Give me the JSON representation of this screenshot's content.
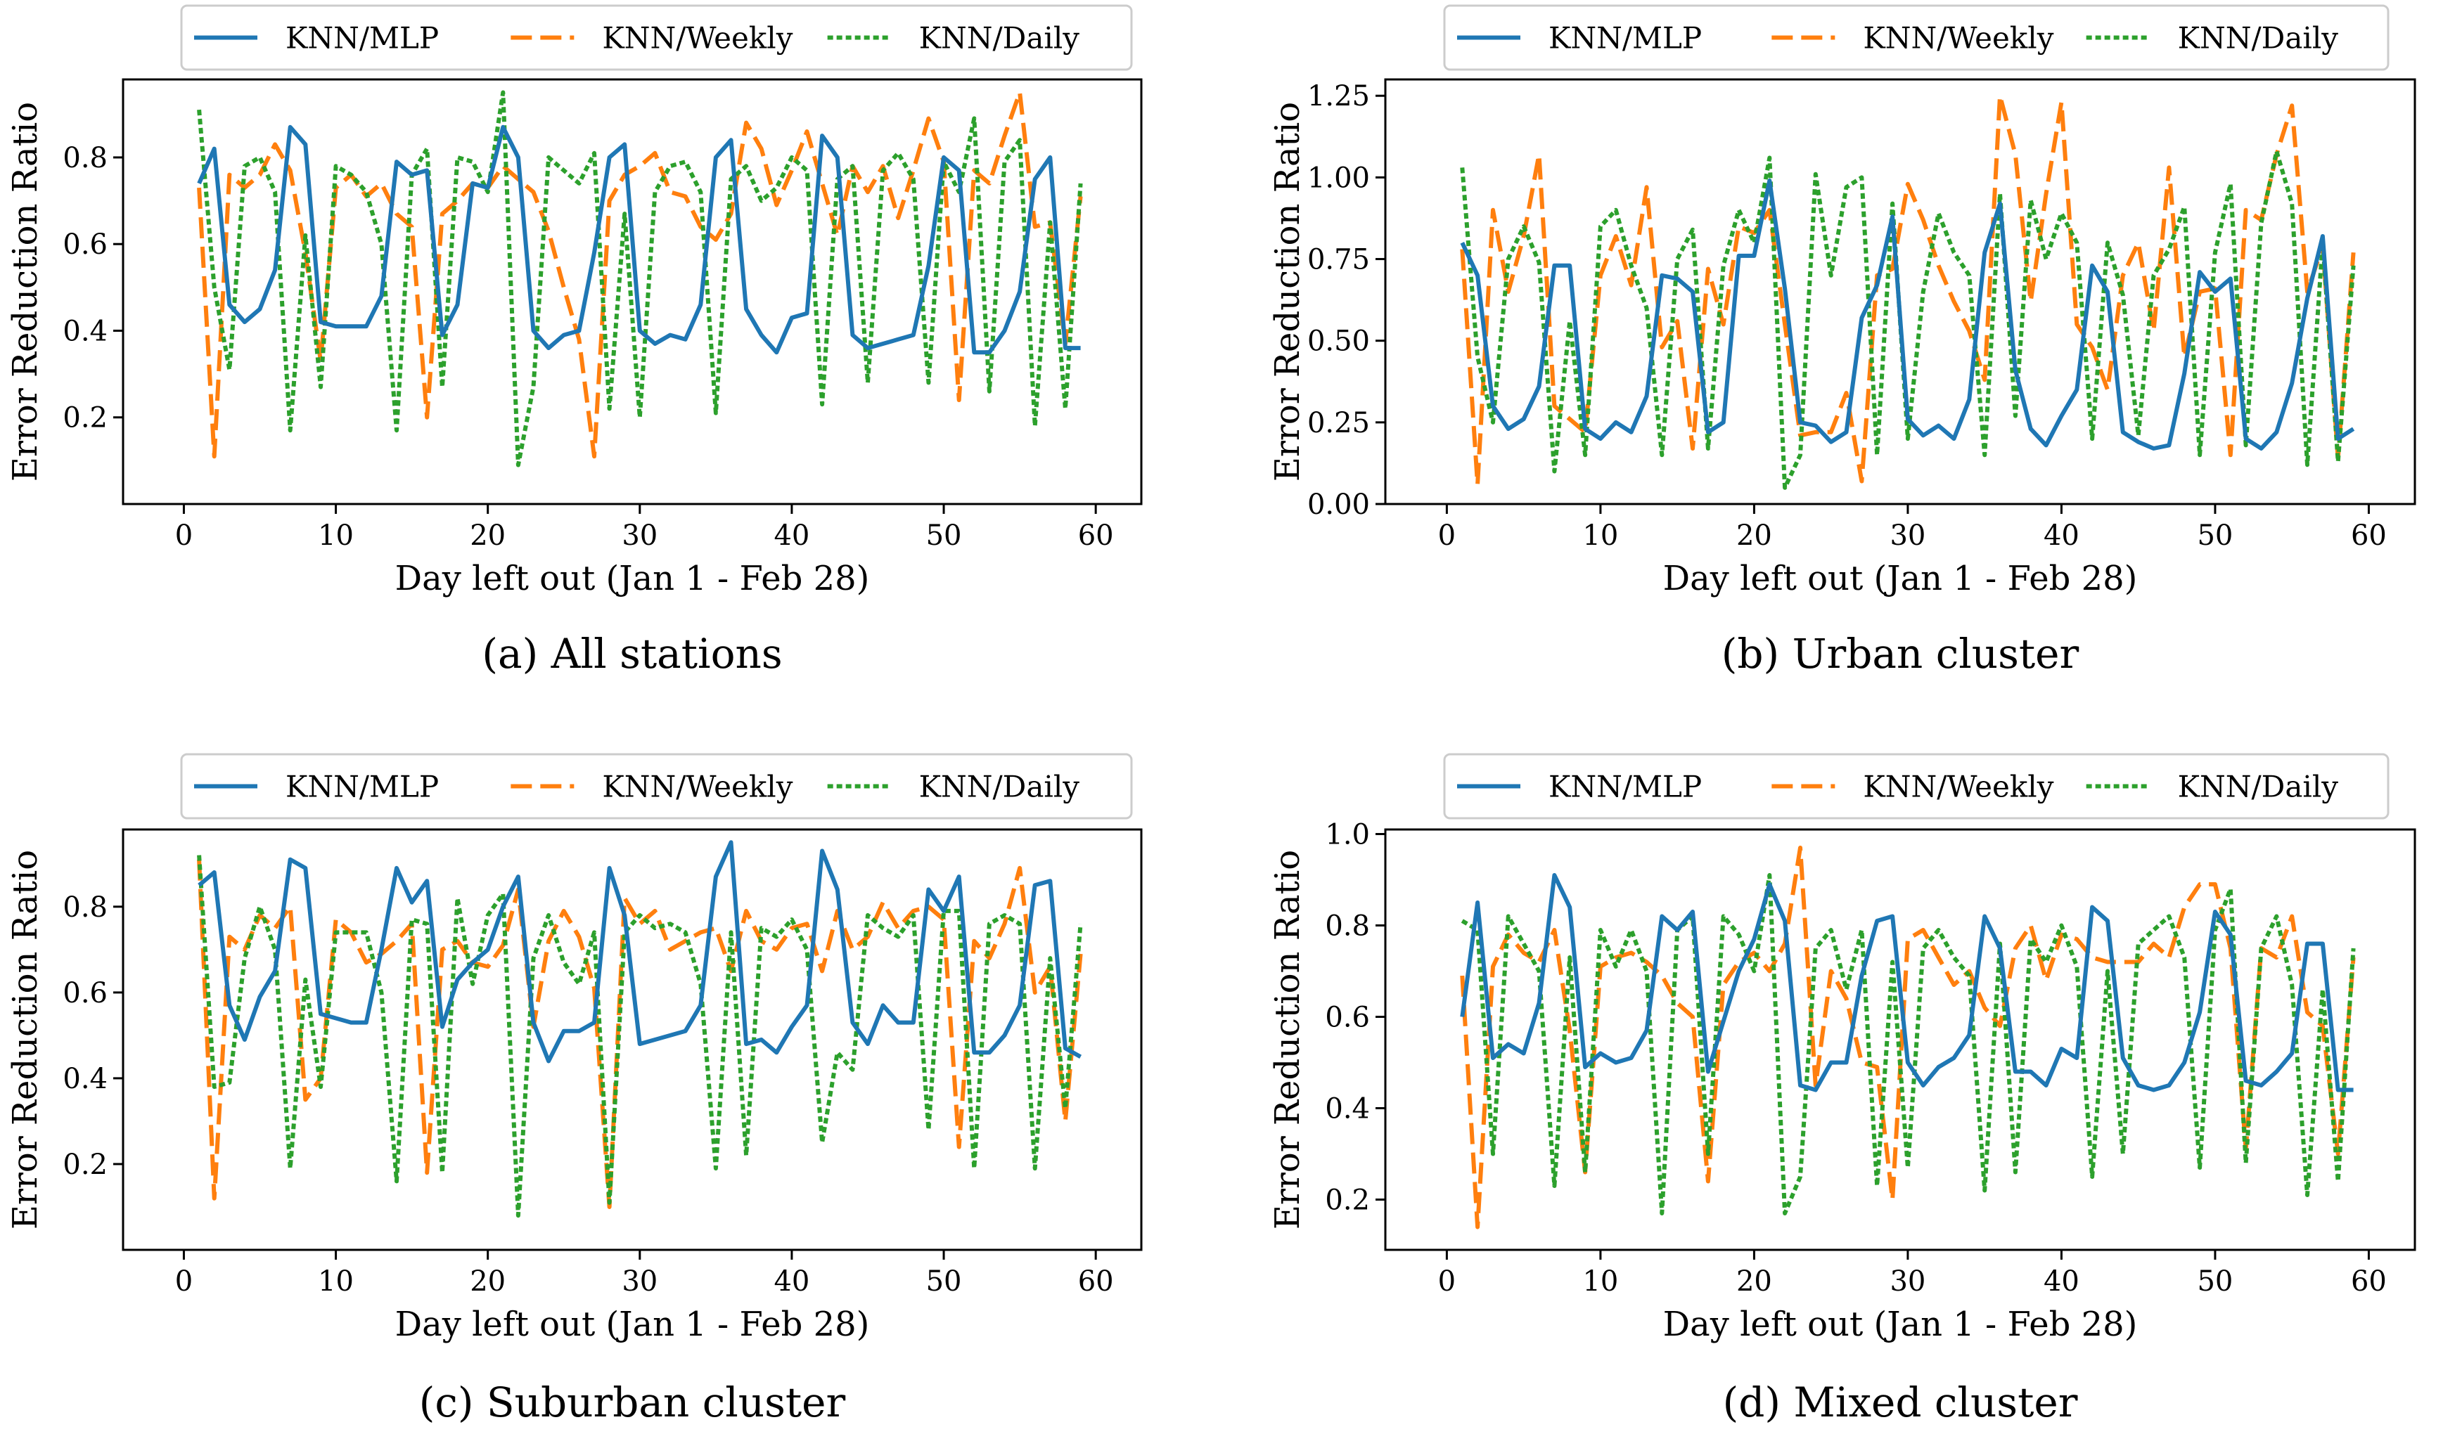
{
  "colors": {
    "KNN/MLP": "#1f77b4",
    "KNN/Weekly": "#ff7f0e",
    "KNN/Daily": "#2ca02c"
  },
  "chart_data": [
    {
      "type": "line",
      "caption": "(a)  All stations",
      "xlabel": "Day left out (Jan 1 - Feb 28)",
      "ylabel": "Error Reduction Ratio",
      "xlim": [
        -4,
        63
      ],
      "ylim": [
        0.0,
        0.98
      ],
      "xticks": [
        0,
        10,
        20,
        30,
        40,
        50,
        60
      ],
      "yticks": [
        0.2,
        0.4,
        0.6,
        0.8
      ],
      "yticklabels": [
        "0.2",
        "0.4",
        "0.6",
        "0.8"
      ],
      "legend": "top",
      "x": [
        1,
        2,
        3,
        4,
        5,
        6,
        7,
        8,
        9,
        10,
        11,
        12,
        13,
        14,
        15,
        16,
        17,
        18,
        19,
        20,
        21,
        22,
        23,
        24,
        25,
        26,
        27,
        28,
        29,
        30,
        31,
        32,
        33,
        34,
        35,
        36,
        37,
        38,
        39,
        40,
        41,
        42,
        43,
        44,
        45,
        46,
        47,
        48,
        49,
        50,
        51,
        52,
        53,
        54,
        55,
        56,
        57,
        58,
        59
      ],
      "series": [
        {
          "name": "KNN/MLP",
          "style": "solid",
          "values": [
            0.74,
            0.82,
            0.46,
            0.42,
            0.45,
            0.54,
            0.87,
            0.83,
            0.42,
            0.41,
            0.41,
            0.41,
            0.48,
            0.79,
            0.76,
            0.77,
            0.39,
            0.46,
            0.74,
            0.73,
            0.87,
            0.8,
            0.4,
            0.36,
            0.39,
            0.4,
            0.58,
            0.8,
            0.83,
            0.4,
            0.37,
            0.39,
            0.38,
            0.46,
            0.8,
            0.84,
            0.45,
            0.39,
            0.35,
            0.43,
            0.44,
            0.85,
            0.8,
            0.39,
            0.36,
            0.37,
            0.38,
            0.39,
            0.55,
            0.8,
            0.77,
            0.35,
            0.35,
            0.4,
            0.49,
            0.75,
            0.8,
            0.36,
            0.36
          ]
        },
        {
          "name": "KNN/Weekly",
          "style": "dashed",
          "values": [
            0.73,
            0.11,
            0.76,
            0.73,
            0.76,
            0.83,
            0.77,
            0.58,
            0.33,
            0.73,
            0.76,
            0.71,
            0.74,
            0.67,
            0.64,
            0.2,
            0.67,
            0.7,
            0.74,
            0.73,
            0.78,
            0.75,
            0.72,
            0.63,
            0.5,
            0.38,
            0.11,
            0.7,
            0.76,
            0.78,
            0.81,
            0.72,
            0.71,
            0.64,
            0.61,
            0.67,
            0.88,
            0.82,
            0.69,
            0.77,
            0.86,
            0.74,
            0.62,
            0.78,
            0.72,
            0.78,
            0.66,
            0.77,
            0.89,
            0.79,
            0.24,
            0.77,
            0.74,
            0.85,
            0.95,
            0.64,
            0.65,
            0.37,
            0.71
          ]
        },
        {
          "name": "KNN/Daily",
          "style": "dotted",
          "values": [
            0.91,
            0.5,
            0.31,
            0.78,
            0.8,
            0.72,
            0.17,
            0.62,
            0.27,
            0.78,
            0.76,
            0.72,
            0.6,
            0.17,
            0.76,
            0.82,
            0.27,
            0.8,
            0.79,
            0.72,
            0.95,
            0.09,
            0.27,
            0.8,
            0.77,
            0.74,
            0.81,
            0.22,
            0.67,
            0.2,
            0.72,
            0.78,
            0.79,
            0.72,
            0.21,
            0.75,
            0.78,
            0.7,
            0.73,
            0.8,
            0.77,
            0.23,
            0.75,
            0.78,
            0.28,
            0.77,
            0.81,
            0.75,
            0.28,
            0.79,
            0.72,
            0.89,
            0.26,
            0.79,
            0.84,
            0.18,
            0.65,
            0.22,
            0.74
          ]
        }
      ]
    },
    {
      "type": "line",
      "caption": "(b)  Urban cluster",
      "xlabel": "Day left out (Jan 1 - Feb 28)",
      "ylabel": "Error Reduction Ratio",
      "xlim": [
        -4,
        63
      ],
      "ylim": [
        0.0,
        1.3
      ],
      "xticks": [
        0,
        10,
        20,
        30,
        40,
        50,
        60
      ],
      "yticks": [
        0.0,
        0.25,
        0.5,
        0.75,
        1.0,
        1.25
      ],
      "yticklabels": [
        "0.00",
        "0.25",
        "0.50",
        "0.75",
        "1.00",
        "1.25"
      ],
      "legend": "top",
      "x": [
        1,
        2,
        3,
        4,
        5,
        6,
        7,
        8,
        9,
        10,
        11,
        12,
        13,
        14,
        15,
        16,
        17,
        18,
        19,
        20,
        21,
        22,
        23,
        24,
        25,
        26,
        27,
        28,
        29,
        30,
        31,
        32,
        33,
        34,
        35,
        36,
        37,
        38,
        39,
        40,
        41,
        42,
        43,
        44,
        45,
        46,
        47,
        48,
        49,
        50,
        51,
        52,
        53,
        54,
        55,
        56,
        57,
        58,
        59
      ],
      "series": [
        {
          "name": "KNN/MLP",
          "style": "solid",
          "values": [
            0.8,
            0.7,
            0.3,
            0.23,
            0.26,
            0.36,
            0.73,
            0.73,
            0.23,
            0.2,
            0.25,
            0.22,
            0.33,
            0.7,
            0.69,
            0.65,
            0.22,
            0.25,
            0.76,
            0.76,
            0.99,
            0.66,
            0.25,
            0.24,
            0.19,
            0.22,
            0.57,
            0.67,
            0.88,
            0.26,
            0.21,
            0.24,
            0.2,
            0.32,
            0.77,
            0.92,
            0.41,
            0.23,
            0.18,
            0.27,
            0.35,
            0.73,
            0.65,
            0.22,
            0.19,
            0.17,
            0.18,
            0.4,
            0.71,
            0.65,
            0.69,
            0.2,
            0.17,
            0.22,
            0.37,
            0.63,
            0.82,
            0.2,
            0.23
          ]
        },
        {
          "name": "KNN/Weekly",
          "style": "dashed",
          "values": [
            0.78,
            0.06,
            0.9,
            0.65,
            0.82,
            1.07,
            0.3,
            0.26,
            0.22,
            0.7,
            0.82,
            0.67,
            0.97,
            0.48,
            0.56,
            0.17,
            0.72,
            0.55,
            0.85,
            0.83,
            0.9,
            0.55,
            0.21,
            0.22,
            0.22,
            0.34,
            0.07,
            0.7,
            0.72,
            0.98,
            0.87,
            0.73,
            0.62,
            0.53,
            0.38,
            1.25,
            1.07,
            0.62,
            0.95,
            1.23,
            0.55,
            0.48,
            0.35,
            0.7,
            0.8,
            0.53,
            1.03,
            0.45,
            0.65,
            0.66,
            0.15,
            0.9,
            0.87,
            1.07,
            1.22,
            0.65,
            0.79,
            0.14,
            0.77
          ]
        },
        {
          "name": "KNN/Daily",
          "style": "dotted",
          "values": [
            1.03,
            0.45,
            0.25,
            0.75,
            0.85,
            0.74,
            0.1,
            0.56,
            0.15,
            0.85,
            0.9,
            0.73,
            0.6,
            0.15,
            0.75,
            0.84,
            0.17,
            0.73,
            0.9,
            0.8,
            1.06,
            0.05,
            0.15,
            1.01,
            0.7,
            0.97,
            1.0,
            0.15,
            0.92,
            0.2,
            0.65,
            0.89,
            0.77,
            0.7,
            0.15,
            0.95,
            0.27,
            0.93,
            0.75,
            0.89,
            0.8,
            0.2,
            0.8,
            0.64,
            0.21,
            0.7,
            0.78,
            0.91,
            0.15,
            0.77,
            0.98,
            0.18,
            0.86,
            1.08,
            0.92,
            0.12,
            0.8,
            0.13,
            0.73
          ]
        }
      ]
    },
    {
      "type": "line",
      "caption": "(c)  Suburban cluster",
      "xlabel": "Day left out (Jan 1 - Feb 28)",
      "ylabel": "Error Reduction Ratio",
      "xlim": [
        -4,
        63
      ],
      "ylim": [
        0.0,
        0.98
      ],
      "xticks": [
        0,
        10,
        20,
        30,
        40,
        50,
        60
      ],
      "yticks": [
        0.2,
        0.4,
        0.6,
        0.8
      ],
      "yticklabels": [
        "0.2",
        "0.4",
        "0.6",
        "0.8"
      ],
      "legend": "top",
      "x": [
        1,
        2,
        3,
        4,
        5,
        6,
        7,
        8,
        9,
        10,
        11,
        12,
        13,
        14,
        15,
        16,
        17,
        18,
        19,
        20,
        21,
        22,
        23,
        24,
        25,
        26,
        27,
        28,
        29,
        30,
        31,
        32,
        33,
        34,
        35,
        36,
        37,
        38,
        39,
        40,
        41,
        42,
        43,
        44,
        45,
        46,
        47,
        48,
        49,
        50,
        51,
        52,
        53,
        54,
        55,
        56,
        57,
        58,
        59
      ],
      "series": [
        {
          "name": "KNN/MLP",
          "style": "solid",
          "values": [
            0.85,
            0.88,
            0.57,
            0.49,
            0.59,
            0.65,
            0.91,
            0.89,
            0.55,
            0.54,
            0.53,
            0.53,
            0.7,
            0.89,
            0.81,
            0.86,
            0.52,
            0.63,
            0.67,
            0.7,
            0.8,
            0.87,
            0.53,
            0.44,
            0.51,
            0.51,
            0.53,
            0.89,
            0.78,
            0.48,
            0.49,
            0.5,
            0.51,
            0.57,
            0.87,
            0.95,
            0.48,
            0.49,
            0.46,
            0.52,
            0.57,
            0.93,
            0.84,
            0.53,
            0.48,
            0.57,
            0.53,
            0.53,
            0.84,
            0.79,
            0.87,
            0.46,
            0.46,
            0.5,
            0.57,
            0.85,
            0.86,
            0.47,
            0.45
          ]
        },
        {
          "name": "KNN/Weekly",
          "style": "dashed",
          "values": [
            0.91,
            0.12,
            0.73,
            0.7,
            0.78,
            0.75,
            0.8,
            0.35,
            0.4,
            0.77,
            0.74,
            0.67,
            0.69,
            0.72,
            0.76,
            0.18,
            0.7,
            0.72,
            0.67,
            0.66,
            0.71,
            0.84,
            0.52,
            0.72,
            0.79,
            0.73,
            0.61,
            0.1,
            0.82,
            0.76,
            0.79,
            0.7,
            0.72,
            0.74,
            0.75,
            0.65,
            0.79,
            0.72,
            0.7,
            0.75,
            0.76,
            0.65,
            0.79,
            0.7,
            0.73,
            0.81,
            0.75,
            0.79,
            0.8,
            0.77,
            0.24,
            0.72,
            0.68,
            0.76,
            0.89,
            0.6,
            0.66,
            0.3,
            0.69
          ]
        },
        {
          "name": "KNN/Daily",
          "style": "dotted",
          "values": [
            0.92,
            0.38,
            0.39,
            0.68,
            0.8,
            0.7,
            0.19,
            0.63,
            0.38,
            0.74,
            0.74,
            0.74,
            0.6,
            0.16,
            0.77,
            0.76,
            0.18,
            0.82,
            0.62,
            0.78,
            0.83,
            0.08,
            0.68,
            0.78,
            0.67,
            0.62,
            0.74,
            0.11,
            0.74,
            0.78,
            0.75,
            0.76,
            0.74,
            0.62,
            0.19,
            0.74,
            0.22,
            0.75,
            0.73,
            0.77,
            0.7,
            0.25,
            0.46,
            0.42,
            0.78,
            0.75,
            0.73,
            0.78,
            0.28,
            0.79,
            0.79,
            0.19,
            0.76,
            0.78,
            0.76,
            0.19,
            0.68,
            0.33,
            0.76
          ]
        }
      ]
    },
    {
      "type": "line",
      "caption": "(d)  Mixed cluster",
      "xlabel": "Day left out (Jan 1 - Feb 28)",
      "ylabel": "Error Reduction Ratio",
      "xlim": [
        -4,
        63
      ],
      "ylim": [
        0.09,
        1.01
      ],
      "xticks": [
        0,
        10,
        20,
        30,
        40,
        50,
        60
      ],
      "yticks": [
        0.2,
        0.4,
        0.6,
        0.8,
        1.0
      ],
      "yticklabels": [
        "0.2",
        "0.4",
        "0.6",
        "0.8",
        "1.0"
      ],
      "legend": "top",
      "x": [
        1,
        2,
        3,
        4,
        5,
        6,
        7,
        8,
        9,
        10,
        11,
        12,
        13,
        14,
        15,
        16,
        17,
        18,
        19,
        20,
        21,
        22,
        23,
        24,
        25,
        26,
        27,
        28,
        29,
        30,
        31,
        32,
        33,
        34,
        35,
        36,
        37,
        38,
        39,
        40,
        41,
        42,
        43,
        44,
        45,
        46,
        47,
        48,
        49,
        50,
        51,
        52,
        53,
        54,
        55,
        56,
        57,
        58,
        59
      ],
      "series": [
        {
          "name": "KNN/MLP",
          "style": "solid",
          "values": [
            0.6,
            0.85,
            0.51,
            0.54,
            0.52,
            0.63,
            0.91,
            0.84,
            0.49,
            0.52,
            0.5,
            0.51,
            0.57,
            0.82,
            0.79,
            0.83,
            0.48,
            0.59,
            0.7,
            0.77,
            0.89,
            0.81,
            0.45,
            0.44,
            0.5,
            0.5,
            0.69,
            0.81,
            0.82,
            0.5,
            0.45,
            0.49,
            0.51,
            0.56,
            0.82,
            0.75,
            0.48,
            0.48,
            0.45,
            0.53,
            0.51,
            0.84,
            0.81,
            0.51,
            0.45,
            0.44,
            0.45,
            0.5,
            0.61,
            0.83,
            0.78,
            0.46,
            0.45,
            0.48,
            0.52,
            0.76,
            0.76,
            0.44,
            0.44
          ]
        },
        {
          "name": "KNN/Weekly",
          "style": "dashed",
          "values": [
            0.69,
            0.14,
            0.71,
            0.78,
            0.74,
            0.72,
            0.79,
            0.57,
            0.26,
            0.71,
            0.73,
            0.74,
            0.72,
            0.69,
            0.63,
            0.6,
            0.24,
            0.67,
            0.72,
            0.74,
            0.7,
            0.76,
            0.97,
            0.45,
            0.7,
            0.64,
            0.5,
            0.49,
            0.2,
            0.77,
            0.79,
            0.73,
            0.67,
            0.7,
            0.62,
            0.58,
            0.75,
            0.8,
            0.68,
            0.78,
            0.77,
            0.73,
            0.72,
            0.72,
            0.72,
            0.76,
            0.73,
            0.84,
            0.89,
            0.89,
            0.75,
            0.31,
            0.75,
            0.73,
            0.82,
            0.61,
            0.58,
            0.3,
            0.73
          ]
        },
        {
          "name": "KNN/Daily",
          "style": "dotted",
          "values": [
            0.81,
            0.79,
            0.3,
            0.82,
            0.76,
            0.7,
            0.23,
            0.73,
            0.26,
            0.79,
            0.71,
            0.79,
            0.7,
            0.17,
            0.79,
            0.82,
            0.3,
            0.82,
            0.78,
            0.7,
            0.91,
            0.17,
            0.25,
            0.75,
            0.79,
            0.66,
            0.79,
            0.23,
            0.72,
            0.27,
            0.75,
            0.79,
            0.73,
            0.69,
            0.22,
            0.76,
            0.26,
            0.77,
            0.72,
            0.8,
            0.71,
            0.25,
            0.7,
            0.3,
            0.76,
            0.79,
            0.82,
            0.73,
            0.27,
            0.79,
            0.88,
            0.28,
            0.75,
            0.82,
            0.67,
            0.21,
            0.66,
            0.24,
            0.75
          ]
        }
      ]
    }
  ]
}
